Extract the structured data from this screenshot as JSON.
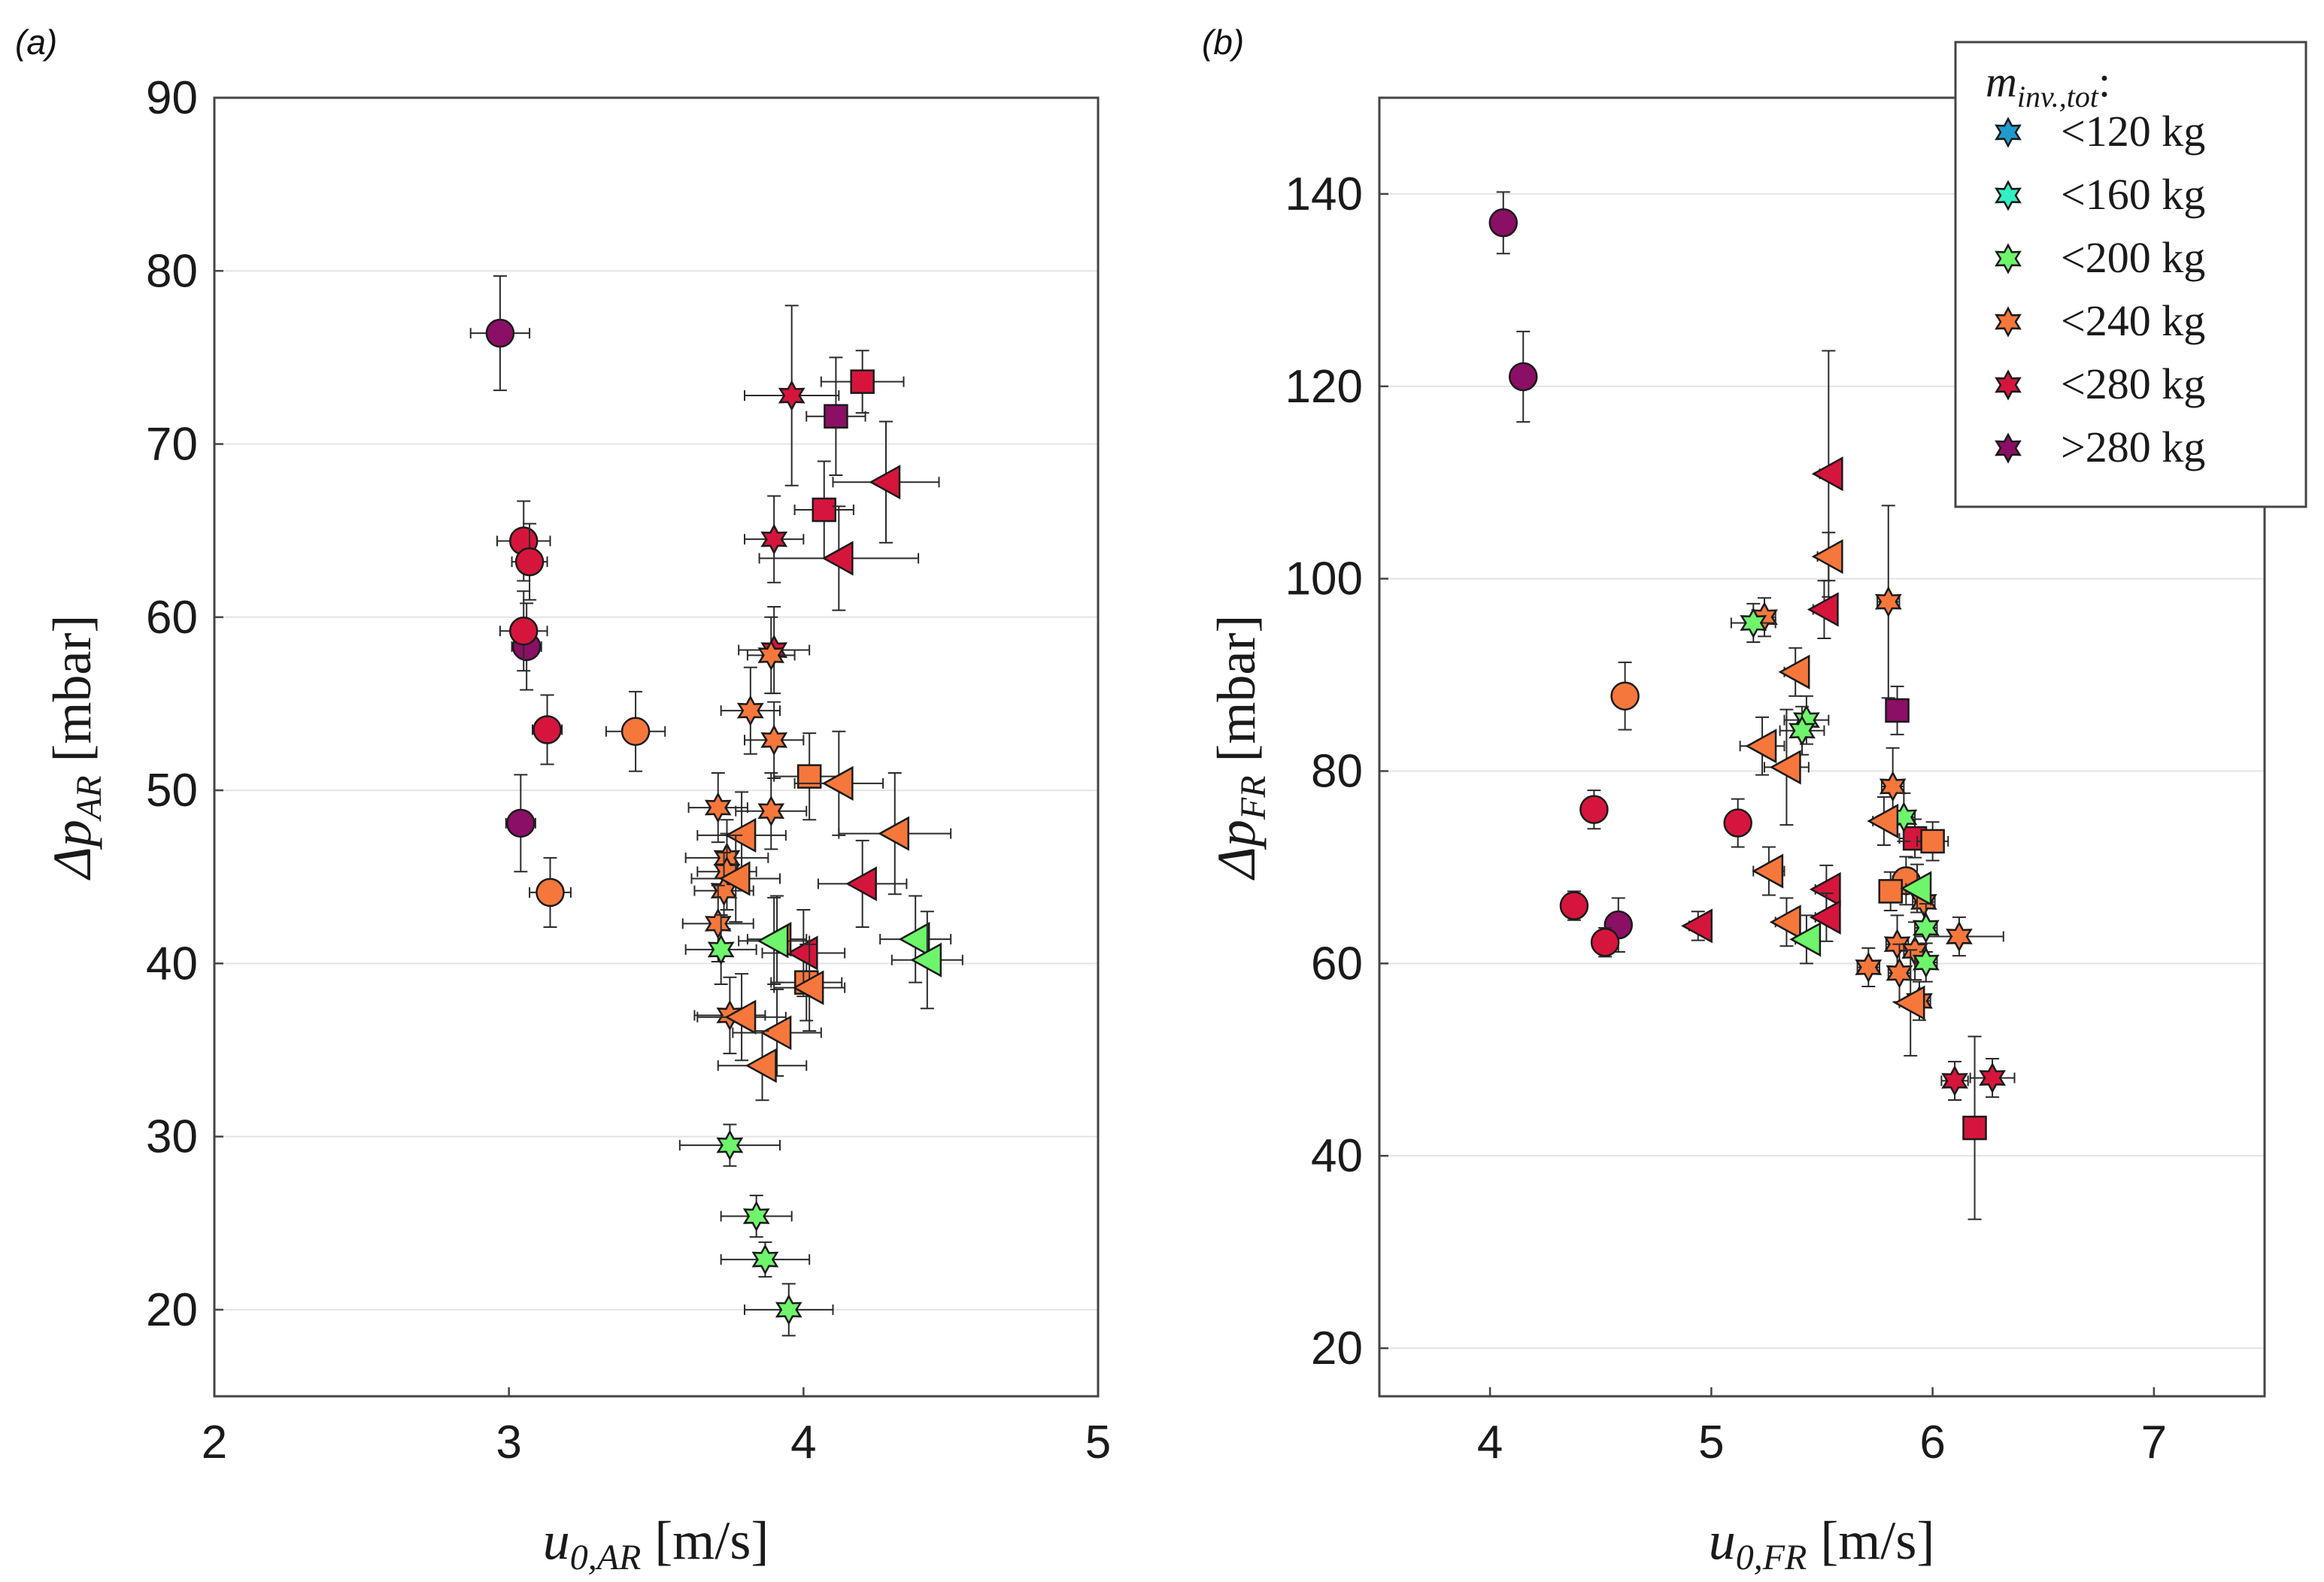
{
  "chart_data": [
    {
      "type": "scatter",
      "panel": "(a)",
      "title": "",
      "xlabel": {
        "base": "u",
        "sub": "0,AR",
        "unit": " [m/s]"
      },
      "ylabel": {
        "base": "Δp",
        "sub": "AR",
        "unit": " [mbar]"
      },
      "xlim": [
        2,
        5
      ],
      "ylim": [
        15,
        90
      ],
      "xticks": [
        "2",
        "3",
        "4",
        "5"
      ],
      "yticks": [
        "20",
        "30",
        "40",
        "50",
        "60",
        "70",
        "80",
        "90"
      ],
      "grid": "horizontal",
      "points": [
        {
          "x": 2.97,
          "y": 76.4,
          "xerr": 0.1,
          "yerr": 3.3,
          "marker": "circle",
          "group": ">280 kg"
        },
        {
          "x": 3.04,
          "y": 48.1,
          "xerr": 0.05,
          "yerr": 2.8,
          "marker": "circle",
          "group": ">280 kg"
        },
        {
          "x": 3.06,
          "y": 58.3,
          "xerr": 0.05,
          "yerr": 2.5,
          "marker": "circle",
          "group": ">280 kg"
        },
        {
          "x": 3.05,
          "y": 64.4,
          "xerr": 0.09,
          "yerr": 2.3,
          "marker": "circle",
          "group": "<280 kg"
        },
        {
          "x": 3.07,
          "y": 63.2,
          "xerr": 0.06,
          "yerr": 2.2,
          "marker": "circle",
          "group": "<280 kg"
        },
        {
          "x": 3.05,
          "y": 59.2,
          "xerr": 0.08,
          "yerr": 2.3,
          "marker": "circle",
          "group": "<280 kg"
        },
        {
          "x": 3.13,
          "y": 53.5,
          "xerr": 0.05,
          "yerr": 2.0,
          "marker": "circle",
          "group": "<280 kg"
        },
        {
          "x": 3.14,
          "y": 44.1,
          "xerr": 0.07,
          "yerr": 2.0,
          "marker": "circle",
          "group": "<240 kg"
        },
        {
          "x": 3.43,
          "y": 53.4,
          "xerr": 0.1,
          "yerr": 2.3,
          "marker": "circle",
          "group": "<240 kg"
        },
        {
          "x": 4.2,
          "y": 73.6,
          "xerr": 0.14,
          "yerr": 1.8,
          "marker": "square",
          "group": "<280 kg"
        },
        {
          "x": 4.11,
          "y": 71.6,
          "xerr": 0.1,
          "yerr": 3.4,
          "marker": "square",
          "group": ">280 kg"
        },
        {
          "x": 4.07,
          "y": 66.2,
          "xerr": 0.1,
          "yerr": 2.8,
          "marker": "square",
          "group": "<280 kg"
        },
        {
          "x": 4.02,
          "y": 50.8,
          "xerr": 0.12,
          "yerr": 2.5,
          "marker": "square",
          "group": "<240 kg"
        },
        {
          "x": 4.01,
          "y": 38.9,
          "xerr": 0.12,
          "yerr": 2.2,
          "marker": "square",
          "group": "<240 kg"
        },
        {
          "x": 3.96,
          "y": 72.8,
          "xerr": 0.16,
          "yerr": 5.2,
          "marker": "star",
          "group": "<280 kg"
        },
        {
          "x": 3.9,
          "y": 64.5,
          "xerr": 0.1,
          "yerr": 2.5,
          "marker": "star",
          "group": "<280 kg"
        },
        {
          "x": 3.9,
          "y": 58.1,
          "xerr": 0.12,
          "yerr": 2.5,
          "marker": "star",
          "group": "<280 kg"
        },
        {
          "x": 3.89,
          "y": 57.8,
          "xerr": 0.08,
          "yerr": 2.2,
          "marker": "star",
          "group": "<240 kg"
        },
        {
          "x": 3.82,
          "y": 54.6,
          "xerr": 0.1,
          "yerr": 2.5,
          "marker": "star",
          "group": "<240 kg"
        },
        {
          "x": 3.9,
          "y": 52.9,
          "xerr": 0.1,
          "yerr": 2.2,
          "marker": "star",
          "group": "<240 kg"
        },
        {
          "x": 3.71,
          "y": 49.0,
          "xerr": 0.1,
          "yerr": 2.0,
          "marker": "star",
          "group": "<240 kg"
        },
        {
          "x": 3.89,
          "y": 48.8,
          "xerr": 0.12,
          "yerr": 2.2,
          "marker": "star",
          "group": "<240 kg"
        },
        {
          "x": 3.74,
          "y": 46.1,
          "xerr": 0.14,
          "yerr": 2.2,
          "marker": "star",
          "group": "<240 kg"
        },
        {
          "x": 3.74,
          "y": 45.3,
          "xerr": 0.1,
          "yerr": 2.2,
          "marker": "star",
          "group": "<240 kg"
        },
        {
          "x": 3.73,
          "y": 44.2,
          "xerr": 0.1,
          "yerr": 2.2,
          "marker": "star",
          "group": "<240 kg"
        },
        {
          "x": 3.71,
          "y": 42.3,
          "xerr": 0.12,
          "yerr": 2.2,
          "marker": "star",
          "group": "<240 kg"
        },
        {
          "x": 3.75,
          "y": 37.0,
          "xerr": 0.12,
          "yerr": 2.2,
          "marker": "star",
          "group": "<240 kg"
        },
        {
          "x": 3.72,
          "y": 40.8,
          "xerr": 0.12,
          "yerr": 2.0,
          "marker": "star",
          "group": "<200 kg"
        },
        {
          "x": 3.75,
          "y": 29.5,
          "xerr": 0.17,
          "yerr": 1.2,
          "marker": "star",
          "group": "<200 kg"
        },
        {
          "x": 3.84,
          "y": 25.4,
          "xerr": 0.12,
          "yerr": 1.2,
          "marker": "star",
          "group": "<200 kg"
        },
        {
          "x": 3.87,
          "y": 22.9,
          "xerr": 0.15,
          "yerr": 1.0,
          "marker": "star",
          "group": "<200 kg"
        },
        {
          "x": 3.95,
          "y": 20.0,
          "xerr": 0.15,
          "yerr": 1.5,
          "marker": "star",
          "group": "<200 kg"
        },
        {
          "x": 4.28,
          "y": 67.8,
          "xerr": 0.18,
          "yerr": 3.5,
          "marker": "triangle-left",
          "group": "<280 kg"
        },
        {
          "x": 4.12,
          "y": 63.4,
          "xerr": 0.27,
          "yerr": 3.0,
          "marker": "triangle-left",
          "group": "<280 kg"
        },
        {
          "x": 4.2,
          "y": 44.6,
          "xerr": 0.15,
          "yerr": 2.5,
          "marker": "triangle-left",
          "group": "<280 kg"
        },
        {
          "x": 4.0,
          "y": 40.6,
          "xerr": 0.14,
          "yerr": 2.5,
          "marker": "triangle-left",
          "group": "<280 kg"
        },
        {
          "x": 4.12,
          "y": 50.4,
          "xerr": 0.15,
          "yerr": 3.0,
          "marker": "triangle-left",
          "group": "<240 kg"
        },
        {
          "x": 4.31,
          "y": 47.5,
          "xerr": 0.19,
          "yerr": 3.5,
          "marker": "triangle-left",
          "group": "<240 kg"
        },
        {
          "x": 3.79,
          "y": 47.4,
          "xerr": 0.15,
          "yerr": 2.5,
          "marker": "triangle-left",
          "group": "<240 kg"
        },
        {
          "x": 3.77,
          "y": 44.9,
          "xerr": 0.15,
          "yerr": 2.5,
          "marker": "triangle-left",
          "group": "<240 kg"
        },
        {
          "x": 3.91,
          "y": 41.4,
          "xerr": 0.1,
          "yerr": 2.5,
          "marker": "triangle-left",
          "group": "<240 kg"
        },
        {
          "x": 4.02,
          "y": 38.6,
          "xerr": 0.12,
          "yerr": 2.5,
          "marker": "triangle-left",
          "group": "<240 kg"
        },
        {
          "x": 3.79,
          "y": 36.9,
          "xerr": 0.15,
          "yerr": 2.5,
          "marker": "triangle-left",
          "group": "<240 kg"
        },
        {
          "x": 3.91,
          "y": 36.0,
          "xerr": 0.15,
          "yerr": 2.5,
          "marker": "triangle-left",
          "group": "<240 kg"
        },
        {
          "x": 3.86,
          "y": 34.1,
          "xerr": 0.15,
          "yerr": 2.0,
          "marker": "triangle-left",
          "group": "<240 kg"
        },
        {
          "x": 3.9,
          "y": 41.3,
          "xerr": 0.12,
          "yerr": 2.5,
          "marker": "triangle-left",
          "group": "<200 kg"
        },
        {
          "x": 4.38,
          "y": 41.4,
          "xerr": 0.12,
          "yerr": 2.5,
          "marker": "triangle-left",
          "group": "<200 kg"
        },
        {
          "x": 4.42,
          "y": 40.2,
          "xerr": 0.12,
          "yerr": 2.8,
          "marker": "triangle-left",
          "group": "<200 kg"
        }
      ]
    },
    {
      "type": "scatter",
      "panel": "(b)",
      "title": "",
      "xlabel": {
        "base": "u",
        "sub": "0,FR",
        "unit": " [m/s]"
      },
      "ylabel": {
        "base": "Δp",
        "sub": "FR",
        "unit": " [mbar]"
      },
      "xlim": [
        3.5,
        7.5
      ],
      "ylim": [
        15,
        150
      ],
      "xticks": [
        "4",
        "5",
        "6",
        "7"
      ],
      "yticks": [
        "20",
        "40",
        "60",
        "80",
        "100",
        "120",
        "140"
      ],
      "grid": "horizontal",
      "points": [
        {
          "x": 4.06,
          "y": 137.0,
          "xerr": 0.05,
          "yerr": 3.2,
          "marker": "circle",
          "group": ">280 kg"
        },
        {
          "x": 4.15,
          "y": 121.0,
          "xerr": 0.03,
          "yerr": 4.7,
          "marker": "circle",
          "group": ">280 kg"
        },
        {
          "x": 4.58,
          "y": 64.0,
          "xerr": 0.04,
          "yerr": 2.8,
          "marker": "circle",
          "group": ">280 kg"
        },
        {
          "x": 4.47,
          "y": 76.0,
          "xerr": 0.04,
          "yerr": 2.0,
          "marker": "circle",
          "group": "<280 kg"
        },
        {
          "x": 4.38,
          "y": 66.0,
          "xerr": 0.05,
          "yerr": 1.5,
          "marker": "circle",
          "group": "<280 kg"
        },
        {
          "x": 4.52,
          "y": 62.2,
          "xerr": 0.05,
          "yerr": 1.5,
          "marker": "circle",
          "group": "<280 kg"
        },
        {
          "x": 5.12,
          "y": 74.6,
          "xerr": 0.05,
          "yerr": 2.5,
          "marker": "circle",
          "group": "<280 kg"
        },
        {
          "x": 4.61,
          "y": 87.8,
          "xerr": 0.04,
          "yerr": 3.5,
          "marker": "circle",
          "group": "<240 kg"
        },
        {
          "x": 5.88,
          "y": 68.6,
          "xerr": 0.06,
          "yerr": 2.5,
          "marker": "circle",
          "group": "<240 kg"
        },
        {
          "x": 5.84,
          "y": 86.3,
          "xerr": 0.05,
          "yerr": 2.5,
          "marker": "square",
          "group": ">280 kg"
        },
        {
          "x": 5.92,
          "y": 73.0,
          "xerr": 0.07,
          "yerr": 2.0,
          "marker": "square",
          "group": "<280 kg"
        },
        {
          "x": 6.19,
          "y": 42.9,
          "xerr": 0.05,
          "yerr": 9.5,
          "marker": "square",
          "group": "<280 kg"
        },
        {
          "x": 6.0,
          "y": 72.7,
          "xerr": 0.07,
          "yerr": 2.0,
          "marker": "square",
          "group": "<240 kg"
        },
        {
          "x": 5.81,
          "y": 67.5,
          "xerr": 0.05,
          "yerr": 2.0,
          "marker": "square",
          "group": "<240 kg"
        },
        {
          "x": 5.8,
          "y": 97.6,
          "xerr": 0.05,
          "yerr": 10.0,
          "marker": "star",
          "group": "<240 kg"
        },
        {
          "x": 5.82,
          "y": 78.4,
          "xerr": 0.05,
          "yerr": 4.0,
          "marker": "star",
          "group": "<240 kg"
        },
        {
          "x": 5.24,
          "y": 96.0,
          "xerr": 0.05,
          "yerr": 2.0,
          "marker": "star",
          "group": "<240 kg"
        },
        {
          "x": 5.84,
          "y": 62.0,
          "xerr": 0.05,
          "yerr": 3.0,
          "marker": "star",
          "group": "<240 kg"
        },
        {
          "x": 5.85,
          "y": 59.0,
          "xerr": 0.05,
          "yerr": 3.0,
          "marker": "star",
          "group": "<240 kg"
        },
        {
          "x": 5.92,
          "y": 61.3,
          "xerr": 0.05,
          "yerr": 3.0,
          "marker": "star",
          "group": "<240 kg"
        },
        {
          "x": 5.71,
          "y": 59.6,
          "xerr": 0.05,
          "yerr": 2.0,
          "marker": "star",
          "group": "<240 kg"
        },
        {
          "x": 5.96,
          "y": 66.4,
          "xerr": 0.05,
          "yerr": 2.0,
          "marker": "star",
          "group": "<240 kg"
        },
        {
          "x": 5.94,
          "y": 56.1,
          "xerr": 0.05,
          "yerr": 2.0,
          "marker": "star",
          "group": "<240 kg"
        },
        {
          "x": 6.12,
          "y": 62.8,
          "xerr": 0.2,
          "yerr": 2.0,
          "marker": "star",
          "group": "<240 kg"
        },
        {
          "x": 6.1,
          "y": 47.8,
          "xerr": 0.06,
          "yerr": 2.0,
          "marker": "star",
          "group": "<280 kg"
        },
        {
          "x": 6.27,
          "y": 48.1,
          "xerr": 0.1,
          "yerr": 2.0,
          "marker": "star",
          "group": "<280 kg"
        },
        {
          "x": 5.19,
          "y": 95.4,
          "xerr": 0.1,
          "yerr": 2.0,
          "marker": "star",
          "group": "<200 kg"
        },
        {
          "x": 5.43,
          "y": 85.3,
          "xerr": 0.1,
          "yerr": 2.5,
          "marker": "star",
          "group": "<200 kg"
        },
        {
          "x": 5.41,
          "y": 84.2,
          "xerr": 0.1,
          "yerr": 2.5,
          "marker": "star",
          "group": "<200 kg"
        },
        {
          "x": 5.87,
          "y": 75.2,
          "xerr": 0.05,
          "yerr": 2.5,
          "marker": "star",
          "group": "<200 kg"
        },
        {
          "x": 5.97,
          "y": 63.7,
          "xerr": 0.05,
          "yerr": 2.5,
          "marker": "star",
          "group": "<200 kg"
        },
        {
          "x": 5.97,
          "y": 60.1,
          "xerr": 0.05,
          "yerr": 2.0,
          "marker": "star",
          "group": "<200 kg"
        },
        {
          "x": 5.53,
          "y": 110.9,
          "xerr": 0.04,
          "yerr": 12.8,
          "marker": "triangle-left",
          "group": "<280 kg"
        },
        {
          "x": 5.51,
          "y": 96.8,
          "xerr": 0.05,
          "yerr": 3.0,
          "marker": "triangle-left",
          "group": "<280 kg"
        },
        {
          "x": 5.52,
          "y": 67.7,
          "xerr": 0.05,
          "yerr": 2.5,
          "marker": "triangle-left",
          "group": "<280 kg"
        },
        {
          "x": 5.52,
          "y": 64.8,
          "xerr": 0.05,
          "yerr": 2.5,
          "marker": "triangle-left",
          "group": "<280 kg"
        },
        {
          "x": 4.94,
          "y": 63.9,
          "xerr": 0.04,
          "yerr": 1.5,
          "marker": "triangle-left",
          "group": "<280 kg"
        },
        {
          "x": 5.53,
          "y": 102.3,
          "xerr": 0.05,
          "yerr": 2.5,
          "marker": "triangle-left",
          "group": "<240 kg"
        },
        {
          "x": 5.38,
          "y": 90.3,
          "xerr": 0.05,
          "yerr": 2.5,
          "marker": "triangle-left",
          "group": "<240 kg"
        },
        {
          "x": 5.23,
          "y": 82.6,
          "xerr": 0.1,
          "yerr": 3.0,
          "marker": "triangle-left",
          "group": "<240 kg"
        },
        {
          "x": 5.34,
          "y": 80.4,
          "xerr": 0.1,
          "yerr": 6.0,
          "marker": "triangle-left",
          "group": "<240 kg"
        },
        {
          "x": 5.78,
          "y": 74.8,
          "xerr": 0.05,
          "yerr": 2.5,
          "marker": "triangle-left",
          "group": "<240 kg"
        },
        {
          "x": 5.26,
          "y": 69.6,
          "xerr": 0.07,
          "yerr": 2.5,
          "marker": "triangle-left",
          "group": "<240 kg"
        },
        {
          "x": 5.34,
          "y": 64.3,
          "xerr": 0.05,
          "yerr": 2.5,
          "marker": "triangle-left",
          "group": "<240 kg"
        },
        {
          "x": 5.9,
          "y": 55.9,
          "xerr": 0.05,
          "yerr": 5.5,
          "marker": "triangle-left",
          "group": "<240 kg"
        },
        {
          "x": 5.43,
          "y": 62.5,
          "xerr": 0.05,
          "yerr": 2.5,
          "marker": "triangle-left",
          "group": "<200 kg"
        },
        {
          "x": 5.93,
          "y": 67.8,
          "xerr": 0.05,
          "yerr": 2.5,
          "marker": "triangle-left",
          "group": "<200 kg"
        }
      ]
    }
  ],
  "legend": {
    "title": {
      "base": "m",
      "sub": "inv.,tot",
      "suffix": ":"
    },
    "entries": [
      {
        "label": "<120 kg",
        "color": "#1f9bd0"
      },
      {
        "label": "<160 kg",
        "color": "#33f0c4"
      },
      {
        "label": "<200 kg",
        "color": "#6ef56b"
      },
      {
        "label": "<240 kg",
        "color": "#f6773b"
      },
      {
        "label": "<280 kg",
        "color": "#d6153c"
      },
      {
        "label": ">280 kg",
        "color": "#8a0f65"
      }
    ]
  }
}
